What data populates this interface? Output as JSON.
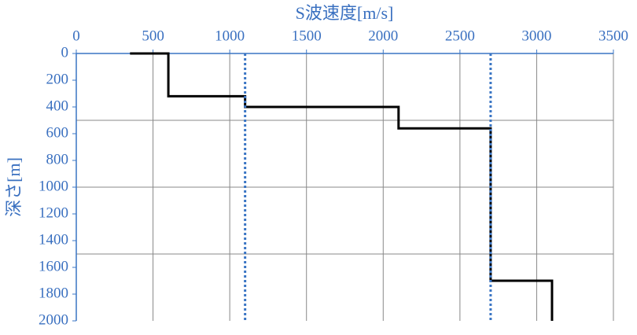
{
  "chart_data": {
    "type": "line",
    "xlabel": "S波速度[m/s]",
    "ylabel": "深さ[m]",
    "xlim": [
      0,
      3500
    ],
    "xticks": [
      0,
      500,
      1000,
      1500,
      2000,
      2500,
      3000,
      3500
    ],
    "ylim": [
      0,
      2000
    ],
    "yticks": [
      0,
      200,
      400,
      600,
      800,
      1000,
      1200,
      1400,
      1600,
      1800,
      2000
    ],
    "y_inverted": true,
    "x_axis_position": "top",
    "xgrid": true,
    "ygrid_values": [
      500,
      1000,
      1500
    ],
    "series": [
      {
        "color": "#000000",
        "dash": "solid",
        "x": [
          350,
          600,
          600,
          1100,
          1100,
          2100,
          2100,
          2700,
          2700,
          3100,
          3100
        ],
        "y": [
          0,
          0,
          320,
          320,
          400,
          400,
          560,
          560,
          1700,
          1700,
          2000
        ]
      },
      {
        "color": "#3a75c4",
        "dash": "dotted",
        "x": [
          1100,
          1100
        ],
        "y": [
          0,
          2000
        ]
      },
      {
        "color": "#3a75c4",
        "dash": "dotted",
        "x": [
          2700,
          2700
        ],
        "y": [
          0,
          2000
        ]
      }
    ]
  }
}
